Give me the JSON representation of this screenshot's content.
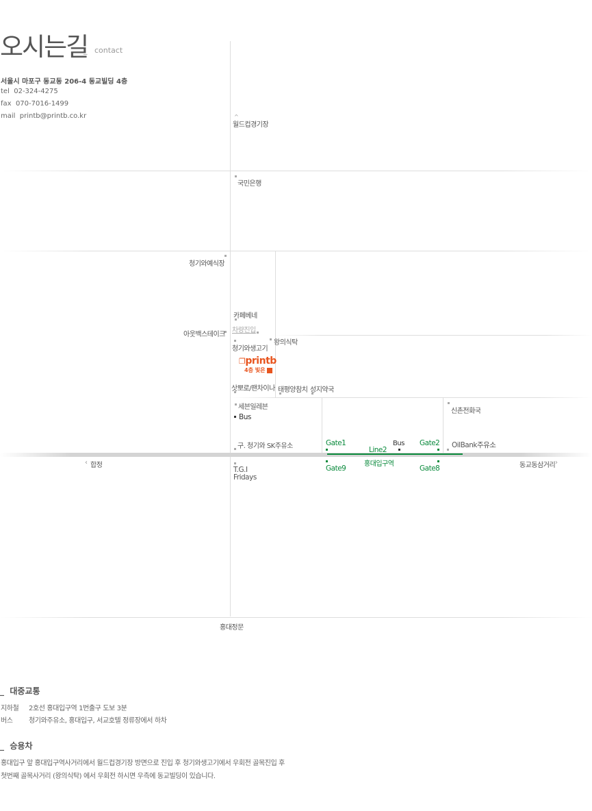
{
  "header": {
    "title": "오시는길",
    "separator": "_",
    "subtitle": "contact"
  },
  "contact": {
    "address": "서울시 마포구 동교동 206-4 동교빌딩 4층",
    "tel_label": "tel",
    "tel": "02-324-4275",
    "fax_label": "fax",
    "fax": "070-7016-1499",
    "mail_label": "mail",
    "mail": "printb@printb.co.kr"
  },
  "map": {
    "worldcup": "월드컵경기장",
    "kb": "국민은행",
    "cheonggiwa_yesik": "청기와예식장",
    "outback": "아웃백스테이크",
    "cafe": "카페베네",
    "parking": "차량진입",
    "wang": "왕의식탁",
    "cheonggiwa_saeng": "청기와생고기",
    "logo_text": "printb",
    "logo_sub": "4층 빛은",
    "sapporo": "삿뽀로/팬차이나",
    "taepyeong": "태평양참치",
    "seongji": "성지약국",
    "seven": "세븐일레븐",
    "bus1": "Bus",
    "sinchon": "신촌전화국",
    "old_sk": "구. 청기와 SK주유소",
    "gate1": "Gate1",
    "bus2": "Bus",
    "gate2": "Gate2",
    "oilbank": "OilBank주유소",
    "line2": "Line2",
    "hapjeong": "합정",
    "hongik_station": "홍대입구역",
    "dongkyo": "동교동삼거리",
    "tgi": "T.G.I\nFridays",
    "gate9": "Gate9",
    "gate8": "Gate8",
    "hongik_gate": "홍대정문",
    "arrow_left": "‹",
    "arrow_right": "›"
  },
  "transit": {
    "title": "대중교통",
    "subway_label": "지하철",
    "subway": "2호선 홍대입구역 1번출구 도보 3분",
    "bus_label": "버스",
    "bus": "청기와주유소, 홍대입구, 서교호텔 정류장에서 하차"
  },
  "car": {
    "title": "승용차",
    "line1": "홍대입구 앞 홍대입구역사거리에서 월드컵경기장 방면으로 진입 후 청기와생고기에서 우회전 골목진입 후",
    "line2": "첫번째 골목사거리 (왕의식탁) 에서 우회전 하시면 우측에 동교빌딩이 있습니다."
  },
  "colors": {
    "subway_green": "#0a8a3c",
    "logo_orange": "#e8551f"
  }
}
